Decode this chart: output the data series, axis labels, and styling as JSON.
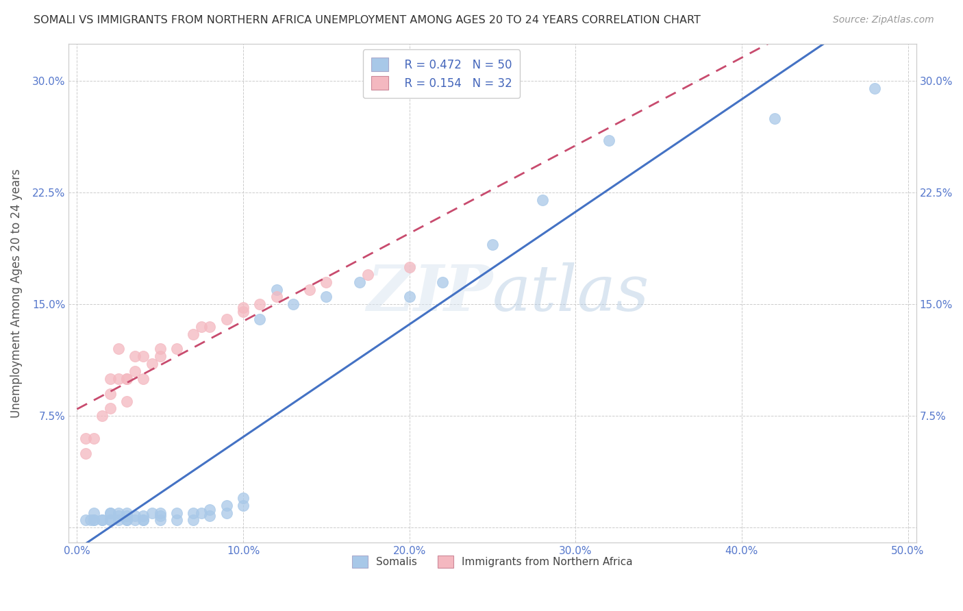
{
  "title": "SOMALI VS IMMIGRANTS FROM NORTHERN AFRICA UNEMPLOYMENT AMONG AGES 20 TO 24 YEARS CORRELATION CHART",
  "source": "Source: ZipAtlas.com",
  "ylabel": "Unemployment Among Ages 20 to 24 years",
  "xlabel": "",
  "xlim": [
    -0.005,
    0.505
  ],
  "ylim": [
    -0.01,
    0.325
  ],
  "xticks": [
    0.0,
    0.1,
    0.2,
    0.3,
    0.4,
    0.5
  ],
  "xticklabels": [
    "0.0%",
    "10.0%",
    "20.0%",
    "30.0%",
    "40.0%",
    "50.0%"
  ],
  "yticks": [
    0.0,
    0.075,
    0.15,
    0.225,
    0.3
  ],
  "yticklabels": [
    "",
    "7.5%",
    "15.0%",
    "22.5%",
    "30.0%"
  ],
  "blue_color": "#a8c8e8",
  "pink_color": "#f4b8c0",
  "blue_line_color": "#4472c4",
  "pink_line_color": "#c84b6e",
  "watermark_zip": "ZIP",
  "watermark_atlas": "atlas",
  "legend_R_blue": "R = 0.472",
  "legend_N_blue": "N = 50",
  "legend_R_pink": "R = 0.154",
  "legend_N_pink": "N = 32",
  "somali_x": [
    0.005,
    0.008,
    0.01,
    0.01,
    0.01,
    0.015,
    0.015,
    0.02,
    0.02,
    0.02,
    0.02,
    0.025,
    0.025,
    0.025,
    0.03,
    0.03,
    0.03,
    0.03,
    0.035,
    0.035,
    0.04,
    0.04,
    0.04,
    0.045,
    0.05,
    0.05,
    0.05,
    0.06,
    0.06,
    0.07,
    0.07,
    0.075,
    0.08,
    0.08,
    0.09,
    0.09,
    0.1,
    0.1,
    0.11,
    0.12,
    0.13,
    0.15,
    0.17,
    0.2,
    0.22,
    0.25,
    0.28,
    0.32,
    0.42,
    0.48
  ],
  "somali_y": [
    0.005,
    0.005,
    0.005,
    0.005,
    0.01,
    0.005,
    0.005,
    0.005,
    0.005,
    0.01,
    0.01,
    0.005,
    0.008,
    0.01,
    0.005,
    0.005,
    0.008,
    0.01,
    0.005,
    0.008,
    0.005,
    0.005,
    0.008,
    0.01,
    0.005,
    0.008,
    0.01,
    0.005,
    0.01,
    0.005,
    0.01,
    0.01,
    0.008,
    0.012,
    0.01,
    0.015,
    0.015,
    0.02,
    0.14,
    0.16,
    0.15,
    0.155,
    0.165,
    0.155,
    0.165,
    0.19,
    0.22,
    0.26,
    0.275,
    0.295
  ],
  "northern_africa_x": [
    0.005,
    0.005,
    0.01,
    0.015,
    0.02,
    0.02,
    0.02,
    0.025,
    0.025,
    0.03,
    0.03,
    0.03,
    0.035,
    0.035,
    0.04,
    0.04,
    0.045,
    0.05,
    0.05,
    0.06,
    0.07,
    0.075,
    0.08,
    0.09,
    0.1,
    0.1,
    0.11,
    0.12,
    0.14,
    0.15,
    0.175,
    0.2
  ],
  "northern_africa_y": [
    0.06,
    0.05,
    0.06,
    0.075,
    0.08,
    0.1,
    0.09,
    0.1,
    0.12,
    0.085,
    0.1,
    0.1,
    0.105,
    0.115,
    0.1,
    0.115,
    0.11,
    0.115,
    0.12,
    0.12,
    0.13,
    0.135,
    0.135,
    0.14,
    0.145,
    0.148,
    0.15,
    0.155,
    0.16,
    0.165,
    0.17,
    0.175
  ],
  "background_color": "#ffffff",
  "grid_color": "#cccccc"
}
